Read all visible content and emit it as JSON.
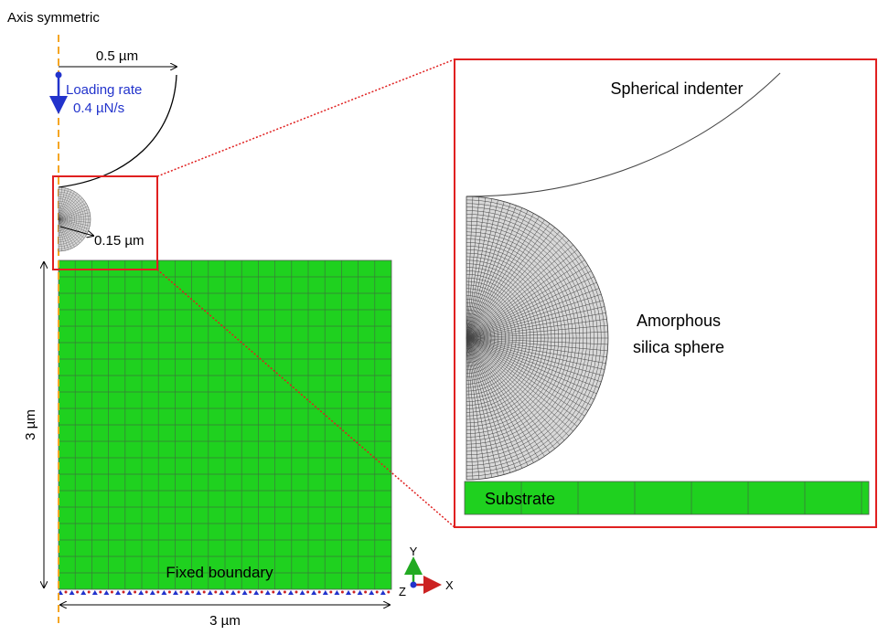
{
  "labels": {
    "axis": "Axis symmetric",
    "indenter_width": "0.5 µm",
    "loading_rate": "Loading rate",
    "loading_value": "0.4 µN/s",
    "sphere_radius": "0.15 µm",
    "height": "3 µm",
    "width": "3 µm",
    "fixed_boundary": "Fixed boundary",
    "axis_y": "Y",
    "axis_x": "X",
    "axis_z": "Z",
    "zoom_indenter": "Spherical indenter",
    "zoom_sphere_1": "Amorphous",
    "zoom_sphere_2": "silica sphere",
    "zoom_substrate": "Substrate"
  }
}
